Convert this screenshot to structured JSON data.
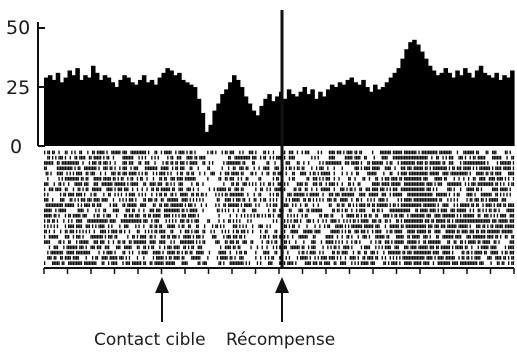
{
  "chart_data": [
    {
      "type": "bar",
      "ylim": [
        0,
        50
      ],
      "yticks": [
        0,
        25,
        50
      ],
      "ytick_labels": [
        "0",
        "25",
        "50"
      ],
      "x": [
        0,
        1,
        2,
        3,
        4,
        5,
        6,
        7,
        8,
        9,
        10,
        11,
        12,
        13,
        14,
        15,
        16,
        17,
        18,
        19,
        20,
        21,
        22,
        23,
        24,
        25,
        26,
        27,
        28,
        29,
        30,
        31,
        32,
        33,
        34,
        35,
        36,
        37,
        38,
        39,
        40,
        41,
        42,
        43,
        44,
        45,
        46,
        47,
        48,
        49,
        50,
        51,
        52,
        53,
        54,
        55,
        56,
        57,
        58,
        59,
        60,
        61,
        62,
        63,
        64,
        65,
        66,
        67,
        68,
        69,
        70,
        71,
        72,
        73,
        74,
        75,
        76,
        77,
        78,
        79,
        80,
        81,
        82,
        83,
        84,
        85,
        86,
        87,
        88,
        89,
        90,
        91,
        92,
        93,
        94,
        95,
        96,
        97,
        98,
        99,
        100,
        101,
        102,
        103,
        104,
        105,
        106,
        107,
        108,
        109,
        110,
        111,
        112,
        113,
        114,
        115,
        116,
        117,
        118,
        119
      ],
      "values": [
        29,
        30,
        28,
        31,
        27,
        29,
        32,
        30,
        33,
        28,
        30,
        29,
        34,
        31,
        28,
        30,
        29,
        27,
        25,
        28,
        30,
        29,
        27,
        26,
        28,
        30,
        27,
        28,
        26,
        29,
        31,
        33,
        32,
        30,
        31,
        28,
        27,
        26,
        25,
        20,
        14,
        6,
        9,
        15,
        18,
        22,
        24,
        27,
        30,
        28,
        25,
        21,
        18,
        15,
        13,
        17,
        20,
        22,
        19,
        21,
        23,
        20,
        24,
        22,
        21,
        23,
        25,
        22,
        24,
        20,
        23,
        21,
        24,
        26,
        25,
        27,
        26,
        28,
        29,
        27,
        26,
        28,
        25,
        23,
        26,
        24,
        25,
        27,
        29,
        31,
        33,
        37,
        41,
        44,
        45,
        43,
        40,
        37,
        34,
        32,
        30,
        31,
        33,
        31,
        29,
        32,
        30,
        33,
        31,
        29,
        32,
        34,
        31,
        30,
        29,
        31,
        28,
        30,
        29,
        32
      ]
    },
    {
      "type": "table",
      "trials": 22
    }
  ],
  "annotations": {
    "contact": "Contact cible",
    "reward": "Récompense"
  }
}
